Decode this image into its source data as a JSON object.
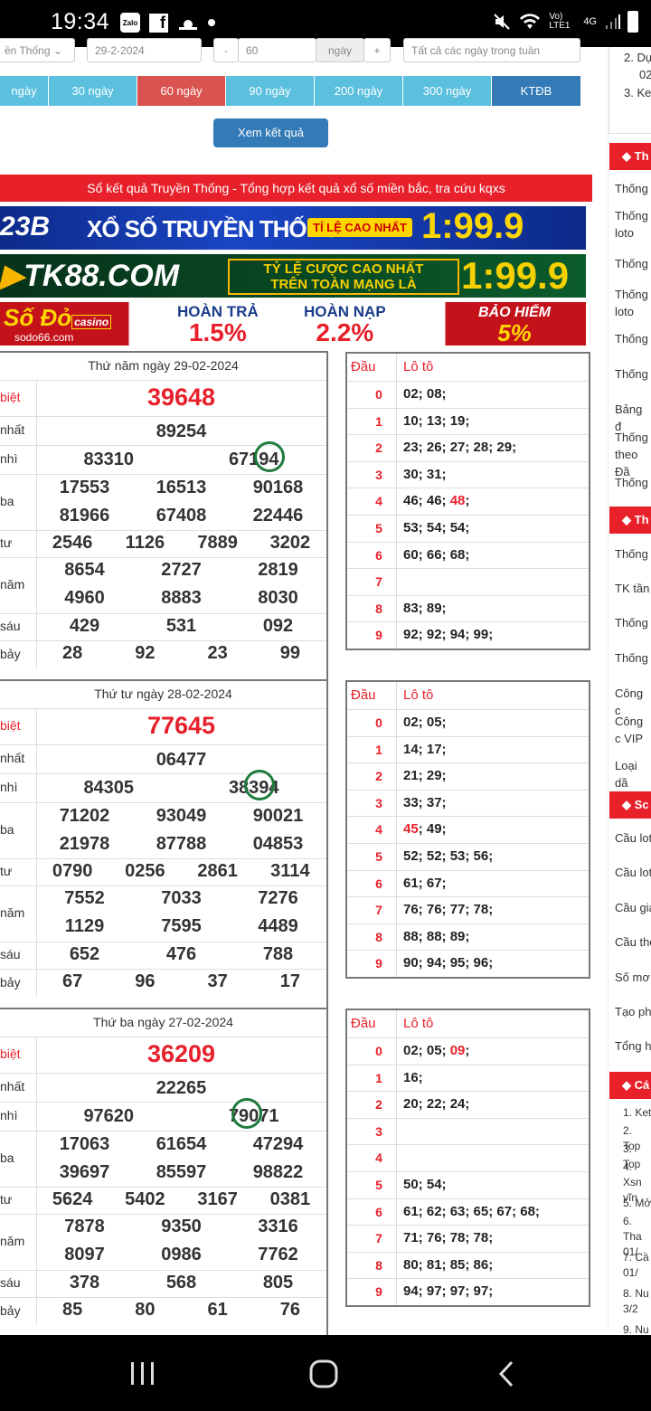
{
  "status": {
    "time": "19:34",
    "zalo": "Zalo",
    "net": "Vo) LTE1",
    "sig": "4G"
  },
  "form": {
    "province": "ền Thống",
    "date": "29-2-2024",
    "minus": "-",
    "count": "60",
    "unit": "ngày",
    "plus": "+",
    "days_opt": "Tất cả các ngày trong tuần"
  },
  "day_tabs": [
    "ngày",
    "30 ngày",
    "60 ngày",
    "90 ngày",
    "200 ngày",
    "300 ngày",
    "KTĐB"
  ],
  "view_button": "Xem kết quả",
  "title_bar": "Sổ kết quả Truyền Thống - Tổng hợp kết quả xổ số miền bắc, tra cứu kqxs",
  "banners": {
    "b1": {
      "left": "23B",
      "mid": "XỔ SỐ TRUYỀN THỐNG",
      "tag": "TỈ LỆ CAO NHẤT",
      "odds": "1:99.9"
    },
    "b2": {
      "brand": "TK88.COM",
      "line1": "TỶ LỆ CƯỢC CAO NHẤT",
      "line2": "TRÊN TOÀN MẠNG LÀ",
      "odds": "1:99.9"
    },
    "b3": {
      "brand": "Số Đỏ",
      "casino": "casino",
      "site": "sodo66.com",
      "h1": "HOÀN TRẢ",
      "v1": "1.5%",
      "h2": "HOÀN NẠP",
      "v2": "2.2%",
      "h3": "BẢO HIỂM",
      "v3": "5%"
    }
  },
  "labels": {
    "db": "biệt",
    "g1": "nhất",
    "g2": "nhì",
    "g3": "ba",
    "g4": "tư",
    "g5": "năm",
    "g6": "sáu",
    "g7": "bảy",
    "dau": "Đầu",
    "loto": "Lô tô"
  },
  "results": [
    {
      "date": "Thứ năm ngày 29-02-2024",
      "db": "39648",
      "g1": "89254",
      "g2": [
        "83310",
        "67194"
      ],
      "g3a": [
        "17553",
        "16513",
        "90168"
      ],
      "g3b": [
        "81966",
        "67408",
        "22446"
      ],
      "g4": [
        "2546",
        "1126",
        "7889",
        "3202"
      ],
      "g5a": [
        "8654",
        "2727",
        "2819"
      ],
      "g5b": [
        "4960",
        "8883",
        "8030"
      ],
      "g6": [
        "429",
        "531",
        "092"
      ],
      "g7": [
        "28",
        "92",
        "23",
        "99"
      ],
      "loto": [
        [
          "0",
          "02; 08;"
        ],
        [
          "1",
          "10; 13; 19;"
        ],
        [
          "2",
          "23; 26; 27; 28; 29;"
        ],
        [
          "3",
          "30; 31;"
        ],
        [
          "4",
          "46; 46; ",
          "48",
          ";"
        ],
        [
          "5",
          "53; 54; 54;"
        ],
        [
          "6",
          "60; 66; 68;"
        ],
        [
          "7",
          ""
        ],
        [
          "8",
          "83; 89;"
        ],
        [
          "9",
          "92; 92; 94; 99;"
        ]
      ]
    },
    {
      "date": "Thứ tư ngày 28-02-2024",
      "db": "77645",
      "g1": "06477",
      "g2": [
        "84305",
        "38394"
      ],
      "g3a": [
        "71202",
        "93049",
        "90021"
      ],
      "g3b": [
        "21978",
        "87788",
        "04853"
      ],
      "g4": [
        "0790",
        "0256",
        "2861",
        "3114"
      ],
      "g5a": [
        "7552",
        "7033",
        "7276"
      ],
      "g5b": [
        "1129",
        "7595",
        "4489"
      ],
      "g6": [
        "652",
        "476",
        "788"
      ],
      "g7": [
        "67",
        "96",
        "37",
        "17"
      ],
      "loto": [
        [
          "0",
          "02; 05;"
        ],
        [
          "1",
          "14; 17;"
        ],
        [
          "2",
          "21; 29;"
        ],
        [
          "3",
          "33; 37;"
        ],
        [
          "4",
          "",
          "45",
          ";  49;"
        ],
        [
          "5",
          "52; 52; 53; 56;"
        ],
        [
          "6",
          "61; 67;"
        ],
        [
          "7",
          "76; 76; 77; 78;"
        ],
        [
          "8",
          "88; 88; 89;"
        ],
        [
          "9",
          "90; 94; 95; 96;"
        ]
      ]
    },
    {
      "date": "Thứ ba ngày 27-02-2024",
      "db": "36209",
      "g1": "22265",
      "g2": [
        "97620",
        "79071"
      ],
      "g3a": [
        "17063",
        "61654",
        "47294"
      ],
      "g3b": [
        "39697",
        "85597",
        "98822"
      ],
      "g4": [
        "5624",
        "5402",
        "3167",
        "0381"
      ],
      "g5a": [
        "7878",
        "9350",
        "3316"
      ],
      "g5b": [
        "8097",
        "0986",
        "7762"
      ],
      "g6": [
        "378",
        "568",
        "805"
      ],
      "g7": [
        "85",
        "80",
        "61",
        "76"
      ],
      "loto": [
        [
          "0",
          "02; 05; ",
          "09",
          ";"
        ],
        [
          "1",
          "16;"
        ],
        [
          "2",
          "20; 22; 24;"
        ],
        [
          "3",
          ""
        ],
        [
          "4",
          ""
        ],
        [
          "5",
          "50; 54;"
        ],
        [
          "6",
          "61; 62; 63; 65; 67; 68;"
        ],
        [
          "7",
          "71; 76; 78; 78;"
        ],
        [
          "8",
          "80; 81; 85; 86;"
        ],
        [
          "9",
          "94; 97; 97; 97;"
        ]
      ]
    }
  ],
  "sidebar": {
    "top": [
      "2. Dự",
      "02",
      "3. Ke"
    ],
    "h1": "Th",
    "items1": [
      "Thống",
      "Thống loto",
      "Thống",
      "Thống loto",
      "Thống",
      "Thống",
      "Bảng đ",
      "Thống theo Đầ",
      "Thống"
    ],
    "h2": "Th",
    "items2": [
      "Thống",
      "TK tần",
      "Thống",
      "Thống",
      "Công c",
      "Công c VIP",
      "Loại dầ"
    ],
    "h3": "Sc",
    "items3": [
      "Cầu lot",
      "Cầu lot",
      "Cầu gia",
      "Cầu the",
      "Số mơ",
      "Tạo ph",
      "Tổng h"
    ],
    "h4": "Cá",
    "items4": [
      "1. Ket",
      "2. Top",
      "3. Top",
      "4. Xsn vĩn",
      "5. Mở",
      "6. Tha 01/",
      "7. Cầ 01/",
      "8. Nu 3/2",
      "9. Nu"
    ]
  },
  "colors": {
    "red": "#e7202a",
    "blue": "#337ab7",
    "cyan": "#5bc0de",
    "green": "#1e7b3c"
  }
}
